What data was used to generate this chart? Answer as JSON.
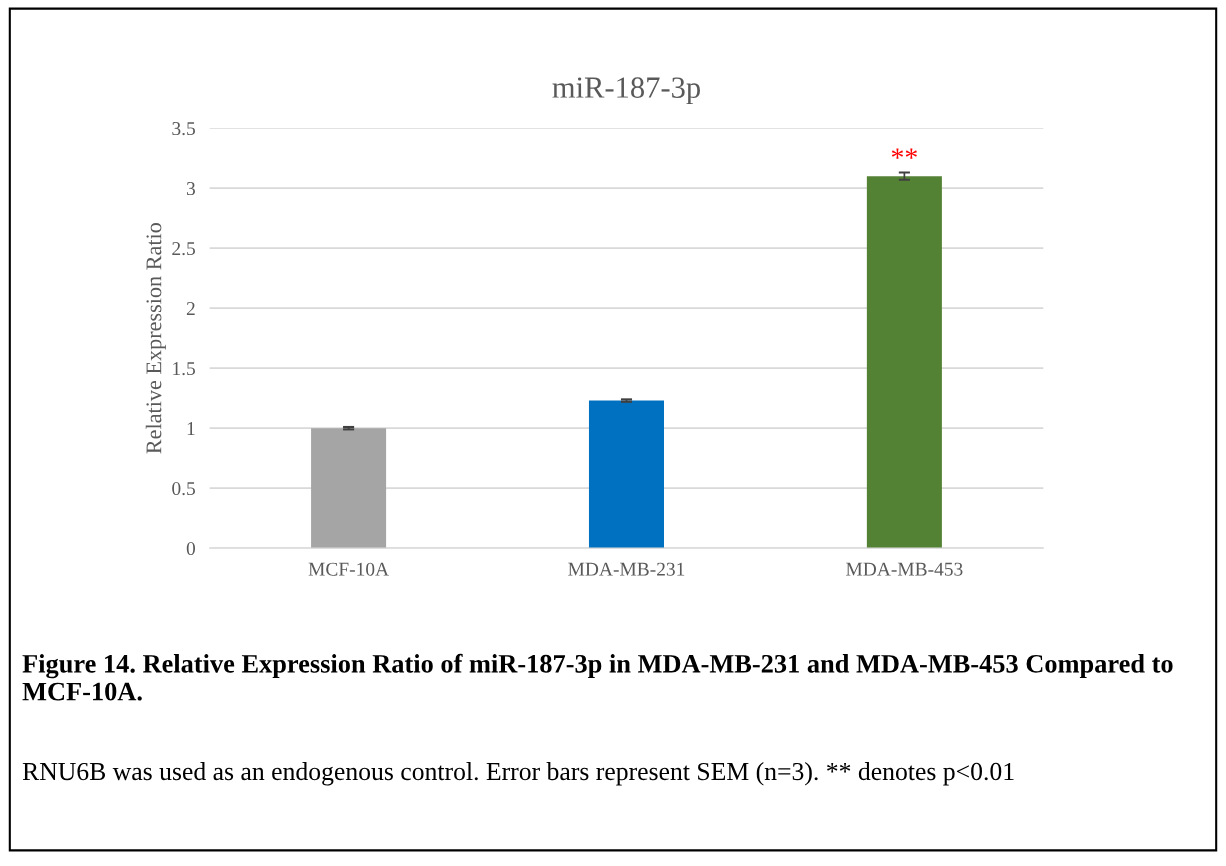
{
  "chart_data": {
    "type": "bar",
    "title": "miR-187-3p",
    "ylabel": "Relative Expression Ratio",
    "categories": [
      "MCF-10A",
      "MDA-MB-231",
      "MDA-MB-453"
    ],
    "values": [
      1.0,
      1.23,
      3.1
    ],
    "colors": [
      "#a5a5a5",
      "#0070c0",
      "#548235"
    ],
    "errors": [
      0.01,
      0.01,
      0.03
    ],
    "ylim": [
      0,
      3.5
    ],
    "yticks": [
      0,
      0.5,
      1,
      1.5,
      2,
      2.5,
      3,
      3.5
    ],
    "grid": "y",
    "annotations": [
      "**",
      "Figure 14. Relative Expression Ratio of miR-187-3p in MDA-MB-231 and MDA-MB-453 Compared to MCF-10A.",
      "RNU6B was used as an endogenous control. Error bars represent SEM (n=3). ** denotes p<0.01"
    ]
  }
}
